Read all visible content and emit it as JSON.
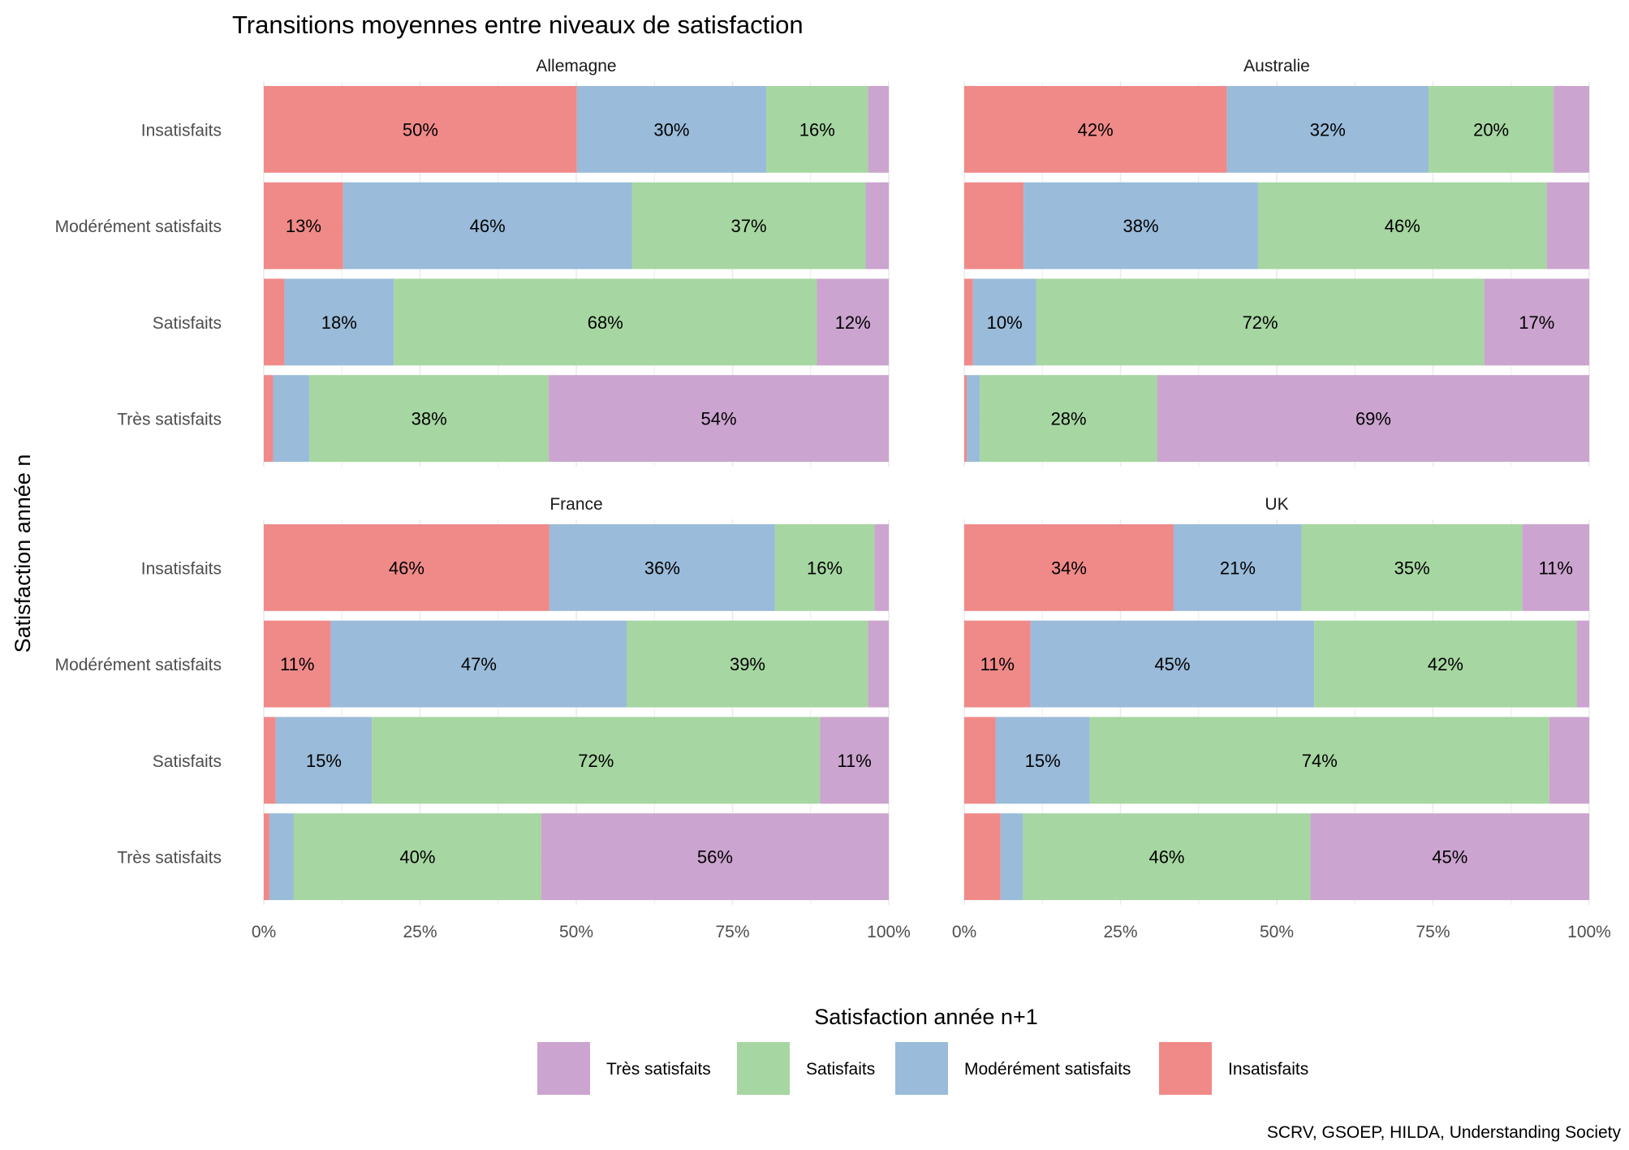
{
  "chart_data": {
    "type": "bar",
    "orientation": "horizontal",
    "stacked": true,
    "title": "Transitions moyennes entre niveaux de satisfaction",
    "ylabel": "Satisfaction année n",
    "caption": "SCRV, GSOEP, HILDA, Understanding Society",
    "legend": {
      "title": "Satisfaction année n+1",
      "position": "bottom",
      "entries": [
        "Très satisfaits",
        "Satisfaits",
        "Modérément satisfaits",
        "Insatisfaits"
      ]
    },
    "x_ticks": [
      "0%",
      "25%",
      "50%",
      "75%",
      "100%"
    ],
    "xlim": [
      0,
      100
    ],
    "grid": true,
    "categories": [
      "Insatisfaits",
      "Modérément satisfaits",
      "Satisfaits",
      "Très satisfaits"
    ],
    "series_order": [
      "Insatisfaits",
      "Modérément satisfaits",
      "Satisfaits",
      "Très satisfaits"
    ],
    "colors": {
      "Insatisfaits": "#EF8A89",
      "Modérément satisfaits": "#9ABBD9",
      "Satisfaits": "#A6D6A1",
      "Très satisfaits": "#CBA4CF"
    },
    "panels": [
      {
        "name": "Allemagne",
        "rows": [
          {
            "category": "Insatisfaits",
            "values": [
              50.1,
              30.3,
              16.3,
              3.3
            ]
          },
          {
            "category": "Modérément satisfaits",
            "values": [
              12.7,
              46.2,
              37.4,
              3.7
            ]
          },
          {
            "category": "Satisfaits",
            "values": [
              3.3,
              17.5,
              67.7,
              11.5
            ]
          },
          {
            "category": "Très satisfaits",
            "values": [
              1.5,
              5.8,
              38.3,
              54.4
            ]
          }
        ]
      },
      {
        "name": "Australie",
        "rows": [
          {
            "category": "Insatisfaits",
            "values": [
              42.0,
              32.3,
              20.0,
              5.7
            ]
          },
          {
            "category": "Modérément satisfaits",
            "values": [
              9.5,
              37.5,
              46.2,
              6.8
            ]
          },
          {
            "category": "Satisfaits",
            "values": [
              1.4,
              10.1,
              71.7,
              16.8
            ]
          },
          {
            "category": "Très satisfaits",
            "values": [
              0.4,
              2.1,
              28.4,
              69.1
            ]
          }
        ]
      },
      {
        "name": "France",
        "rows": [
          {
            "category": "Insatisfaits",
            "values": [
              45.7,
              36.1,
              15.9,
              2.3
            ]
          },
          {
            "category": "Modérément satisfaits",
            "values": [
              10.7,
              47.4,
              38.6,
              3.3
            ]
          },
          {
            "category": "Satisfaits",
            "values": [
              1.9,
              15.4,
              71.7,
              11.0
            ]
          },
          {
            "category": "Très satisfaits",
            "values": [
              0.9,
              3.9,
              39.6,
              55.6
            ]
          }
        ]
      },
      {
        "name": "UK",
        "rows": [
          {
            "category": "Insatisfaits",
            "values": [
              33.5,
              20.5,
              35.3,
              10.7
            ]
          },
          {
            "category": "Modérément satisfaits",
            "values": [
              10.6,
              45.4,
              42.0,
              2.0
            ]
          },
          {
            "category": "Satisfaits",
            "values": [
              5.0,
              15.1,
              73.5,
              6.4
            ]
          },
          {
            "category": "Très satisfaits",
            "values": [
              5.8,
              3.6,
              46.0,
              44.6
            ]
          }
        ]
      }
    ]
  }
}
